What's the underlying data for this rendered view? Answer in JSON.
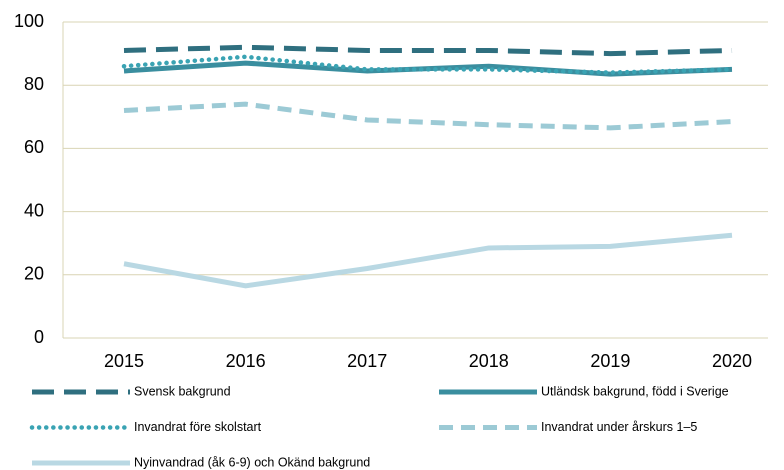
{
  "chart_data": {
    "type": "line",
    "categories": [
      "2015",
      "2016",
      "2017",
      "2018",
      "2019",
      "2020"
    ],
    "series": [
      {
        "name": "Svensk bakgrund",
        "color": "#2f6f7f",
        "line_style": "long-dash",
        "values": [
          91,
          92,
          91,
          91,
          90,
          91
        ]
      },
      {
        "name": "Utländsk bakgrund, född i Sverige",
        "color": "#3a8e9f",
        "line_style": "solid",
        "values": [
          84.5,
          87,
          84.5,
          86,
          83.5,
          85
        ]
      },
      {
        "name": "Invandrat före skolstart",
        "color": "#3aa3b3",
        "line_style": "dot",
        "values": [
          86,
          89,
          85,
          85,
          84,
          85
        ]
      },
      {
        "name": "Invandrat under årskurs 1–5",
        "color": "#9ccad5",
        "line_style": "dash",
        "values": [
          72,
          74,
          69,
          67.5,
          66.5,
          68.5
        ]
      },
      {
        "name": "Nyinvandrad (åk 6-9) och Okänd bakgrund",
        "color": "#b9d8e3",
        "line_style": "solid",
        "values": [
          23.5,
          16.5,
          22,
          28.5,
          29,
          32.5
        ]
      }
    ],
    "ylim": [
      0,
      100
    ],
    "yticks": [
      0,
      20,
      40,
      60,
      80,
      100
    ],
    "grid": true
  }
}
